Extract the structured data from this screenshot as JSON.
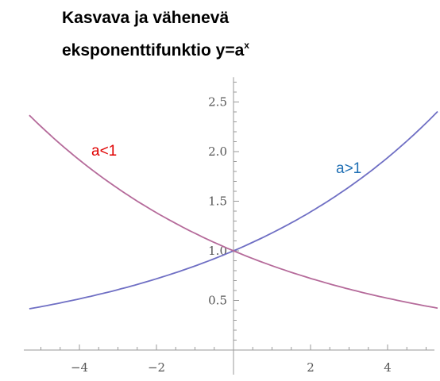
{
  "title": {
    "line1": "Kasvava ja vähenevä",
    "line2_main": "eksponenttifunktio y=a",
    "line2_sup": "x"
  },
  "chart_data": {
    "type": "line",
    "title": "Kasvava ja vähenevä eksponenttifunktio y=a^x",
    "xlim": [
      -5.3,
      5.3
    ],
    "ylim": [
      -0.05,
      2.75
    ],
    "x_ticks": [
      -4,
      -2,
      2,
      4
    ],
    "x_tick_labels": [
      "−4",
      "−2",
      "2",
      "4"
    ],
    "y_ticks": [
      0.5,
      1.0,
      1.5,
      2.0,
      2.5
    ],
    "y_tick_labels": [
      "0.5",
      "1.0",
      "1.5",
      "2.0",
      "2.5"
    ],
    "grid": false,
    "series": [
      {
        "label_text": "a>1",
        "label_color": "#1f6fb4",
        "line_color": "#6f6fc4",
        "base": 1.18,
        "x": [
          -5.3,
          -4,
          -3,
          -2,
          -1,
          0,
          1,
          2,
          3,
          4,
          5.3
        ],
        "y": [
          0.42,
          0.52,
          0.61,
          0.72,
          0.85,
          1.0,
          1.18,
          1.39,
          1.64,
          1.94,
          2.4
        ]
      },
      {
        "label_text": "a<1",
        "label_color": "#e00000",
        "line_color": "#b56a9a",
        "base": 0.85,
        "x": [
          -5.3,
          -4,
          -3,
          -2,
          -1,
          0,
          1,
          2,
          3,
          4,
          5.3
        ],
        "y": [
          2.37,
          1.92,
          1.63,
          1.38,
          1.18,
          1.0,
          0.85,
          0.72,
          0.61,
          0.52,
          0.42
        ]
      }
    ]
  }
}
